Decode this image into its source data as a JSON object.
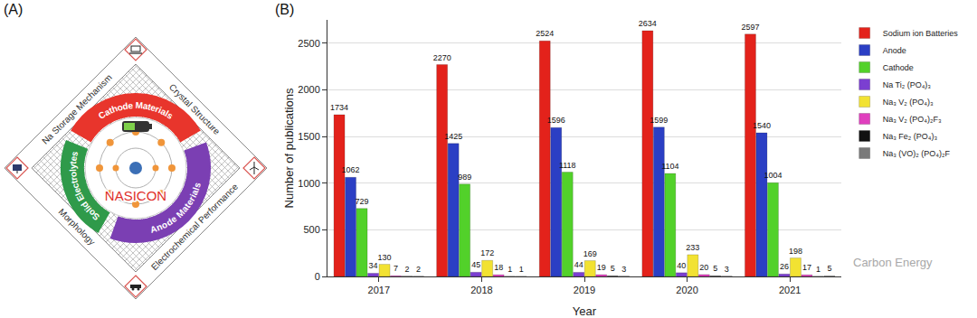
{
  "panel_labels": [
    "(A)",
    "(B)"
  ],
  "diagram": {
    "center": "NASICON",
    "ring": [
      "Cathode Materials",
      "Anode Materials",
      "Solid Electrolytes"
    ],
    "edges": [
      "Na Storage Mechanism",
      "Crystal Structure",
      "Electrochemical Performance",
      "Morphology"
    ]
  },
  "watermark": "Carbon Energy",
  "chart_data": {
    "type": "bar",
    "x_label": "Year",
    "y_label": "Number of publications",
    "categories": [
      "2017",
      "2018",
      "2019",
      "2020",
      "2021"
    ],
    "series": [
      {
        "name": "Sodium ion Batteries",
        "color": "#e3221b",
        "values": [
          1734,
          2270,
          2524,
          2634,
          2597
        ]
      },
      {
        "name": "Anode",
        "color": "#2b3fc4",
        "values": [
          1062,
          1425,
          1596,
          1599,
          1540
        ]
      },
      {
        "name": "Cathode",
        "color": "#52d12a",
        "values": [
          729,
          989,
          1118,
          1104,
          1004
        ]
      },
      {
        "name": "Na Ti₂ (PO₄)₃",
        "color": "#7b3fd1",
        "values": [
          34,
          45,
          44,
          40,
          26
        ]
      },
      {
        "name": "Na₃ V₂ (PO₄)₃",
        "color": "#f2e232",
        "values": [
          130,
          172,
          169,
          233,
          198
        ]
      },
      {
        "name": "Na₃ V₂ (PO₄)₂F₃",
        "color": "#e03fbe",
        "values": [
          7,
          18,
          19,
          20,
          17
        ]
      },
      {
        "name": "Na₃ Fe₂ (PO₄)₃",
        "color": "#111111",
        "values": [
          2,
          1,
          5,
          5,
          1
        ]
      },
      {
        "name": "Na₃ (VO)₂ (PO₄)₂F",
        "color": "#7a7a7a",
        "values": [
          2,
          1,
          3,
          3,
          5
        ]
      }
    ],
    "ylim": [
      0,
      2750
    ],
    "yticks": [
      0,
      500,
      1000,
      1500,
      2000,
      2500
    ],
    "grid": true,
    "legend": "right",
    "data_labels": true
  }
}
